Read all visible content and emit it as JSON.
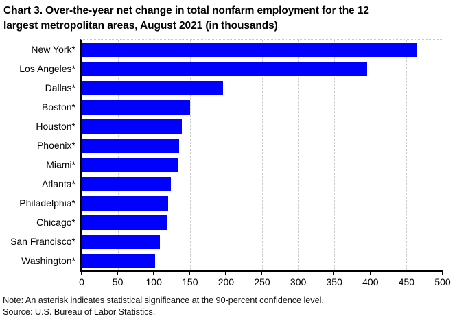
{
  "title": {
    "full": "Chart 3. Over-the-year net change in total nonfarm employment for the 12 largest metropolitan areas, August 2021 (in thousands)",
    "lines": [
      "Chart 3. Over-the-year net change in total nonfarm employment for the 12",
      "largest metropolitan areas, August 2021 (in thousands)"
    ]
  },
  "chart_data": {
    "type": "bar",
    "orientation": "horizontal",
    "title": "Chart 3. Over-the-year net change in total nonfarm employment for the 12 largest metropolitan areas, August 2021 (in thousands)",
    "categories": [
      "New York*",
      "Los Angeles*",
      "Dallas*",
      "Boston*",
      "Houston*",
      "Phoenix*",
      "Miami*",
      "Atlanta*",
      "Philadelphia*",
      "Chicago*",
      "San Francisco*",
      "Washington*"
    ],
    "values": [
      464,
      395,
      196,
      150,
      139,
      135,
      134,
      124,
      120,
      118,
      108,
      102
    ],
    "xlabel": "",
    "ylabel": "",
    "xlim": [
      0,
      500
    ],
    "xticks": [
      0,
      50,
      100,
      150,
      200,
      250,
      300,
      350,
      400,
      450,
      500
    ],
    "grid": true,
    "legend": "none",
    "bar_color": "#0000ff",
    "gridline_color": "#c9c9c9",
    "axis_color": "#000000"
  },
  "footnotes": {
    "note": "Note: An asterisk indicates statistical significance at the 90-percent confidence level.",
    "source": "Source: U.S. Bureau of Labor Statistics."
  }
}
